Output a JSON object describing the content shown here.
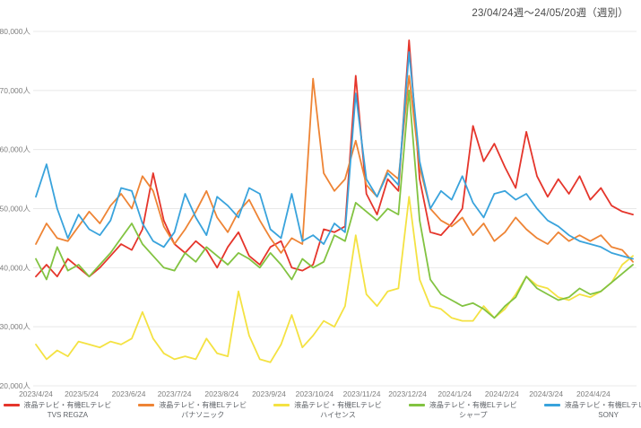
{
  "title": "23/04/24週〜24/05/20週（週別）",
  "chart_data": {
    "type": "line",
    "title": "23/04/24週〜24/05/20週（週別）",
    "x_unit": "週",
    "n_points": 57,
    "ylim": [
      20000,
      80000
    ],
    "grid": "horizontal",
    "legend_position": "bottom",
    "y_axis": {
      "tick_values": [
        20000,
        30000,
        40000,
        50000,
        60000,
        70000,
        80000
      ],
      "tick_labels": [
        "20,000人",
        "30,000人",
        "40,000人",
        "50,000人",
        "60,000人",
        "70,000人",
        "80,000人"
      ]
    },
    "x_axis": {
      "tick_labels": [
        "2023/4/24",
        "2023/5/24",
        "2023/6/24",
        "2023/7/24",
        "2023/8/24",
        "2023/9/24",
        "2023/10/24",
        "2023/11/24",
        "2023/12/24",
        "2024/1/24",
        "2024/2/24",
        "2024/3/24",
        "2024/4/24"
      ],
      "tick_positions": [
        0,
        4.29,
        8.71,
        13.0,
        17.43,
        21.86,
        26.14,
        30.57,
        34.86,
        39.29,
        43.71,
        47.86,
        52.29
      ]
    },
    "series": [
      {
        "name": "液晶テレビ・有機ELテレビ TVS REGZA",
        "legend_line1": "液晶テレビ・有機ELテレビ",
        "legend_line2": "TVS REGZA",
        "color": "#e5352b",
        "values": [
          38500,
          40500,
          38500,
          41500,
          40000,
          38500,
          40000,
          42000,
          44000,
          43000,
          46500,
          56000,
          48000,
          44000,
          42500,
          44500,
          43000,
          40000,
          43500,
          46000,
          42000,
          40500,
          43500,
          44500,
          40000,
          39500,
          40500,
          46500,
          46000,
          47000,
          72500,
          52500,
          49000,
          55000,
          53000,
          78500,
          55000,
          46000,
          45500,
          47500,
          50000,
          64000,
          58000,
          61000,
          57000,
          53500,
          63000,
          55500,
          52000,
          55000,
          52500,
          55500,
          51500,
          53500,
          50500,
          49500,
          49000
        ]
      },
      {
        "name": "液晶テレビ・有機ELテレビ パナソニック",
        "legend_line1": "液晶テレビ・有機ELテレビ",
        "legend_line2": "パナソニック",
        "color": "#ee8435",
        "values": [
          44000,
          47500,
          45000,
          44500,
          47000,
          49500,
          47500,
          50500,
          52500,
          50000,
          55500,
          53000,
          47000,
          44000,
          46500,
          49500,
          53000,
          48500,
          46000,
          49500,
          51500,
          48000,
          45000,
          42500,
          45000,
          44000,
          72000,
          56000,
          53000,
          55000,
          61500,
          54000,
          52000,
          56500,
          55000,
          72500,
          57000,
          50000,
          48000,
          47000,
          48500,
          45500,
          47500,
          44500,
          46000,
          48500,
          46500,
          45000,
          44000,
          46000,
          44500,
          45500,
          44500,
          45500,
          43500,
          43000,
          41000
        ]
      },
      {
        "name": "液晶テレビ・有機ELテレビ ハイセンス",
        "legend_line1": "液晶テレビ・有機ELテレビ",
        "legend_line2": "ハイセンス",
        "color": "#f4e242",
        "values": [
          27000,
          24500,
          26000,
          25000,
          27500,
          27000,
          26500,
          27500,
          27000,
          28000,
          32500,
          28000,
          25500,
          24500,
          25000,
          24500,
          28000,
          25500,
          25000,
          36000,
          28500,
          24500,
          24000,
          27000,
          32000,
          26500,
          28500,
          31000,
          30000,
          33500,
          45500,
          35500,
          33500,
          36000,
          36500,
          52000,
          38000,
          33500,
          33000,
          31500,
          31000,
          31000,
          33500,
          31500,
          33000,
          35500,
          38500,
          37000,
          36500,
          35000,
          34500,
          35500,
          35000,
          36000,
          37500,
          40500,
          42000
        ]
      },
      {
        "name": "液晶テレビ・有機ELテレビ シャープ",
        "legend_line1": "液晶テレビ・有機ELテレビ",
        "legend_line2": "シャープ",
        "color": "#82c341",
        "values": [
          41500,
          38000,
          43500,
          39500,
          40500,
          38500,
          40500,
          42500,
          45000,
          47500,
          44000,
          42000,
          40000,
          39500,
          42500,
          41000,
          43500,
          42000,
          40500,
          42500,
          41500,
          40000,
          42500,
          40500,
          38000,
          41500,
          40000,
          41000,
          45500,
          44500,
          51000,
          49500,
          48000,
          50000,
          49000,
          70000,
          48000,
          38000,
          35500,
          34500,
          33500,
          34000,
          33000,
          31500,
          33500,
          35000,
          38500,
          36500,
          35500,
          34500,
          35000,
          36500,
          35500,
          36000,
          37500,
          39000,
          40500
        ]
      },
      {
        "name": "液晶テレビ・有機ELテレビ SONY",
        "legend_line1": "液晶テレビ・有機ELテレビ",
        "legend_line2": "SONY",
        "color": "#39a3dc",
        "values": [
          52000,
          57500,
          50000,
          45000,
          49000,
          46500,
          45500,
          48000,
          53500,
          53000,
          47500,
          44500,
          43500,
          46000,
          52500,
          48500,
          45500,
          52000,
          50500,
          48500,
          53500,
          52500,
          46500,
          45000,
          52500,
          44500,
          45500,
          44000,
          47500,
          46000,
          69500,
          55000,
          52000,
          56000,
          54000,
          76500,
          58000,
          50000,
          53000,
          51500,
          55500,
          51000,
          48500,
          52500,
          53000,
          51500,
          52500,
          50000,
          48000,
          47000,
          45500,
          44500,
          44000,
          43500,
          42500,
          42000,
          41500
        ]
      }
    ]
  }
}
